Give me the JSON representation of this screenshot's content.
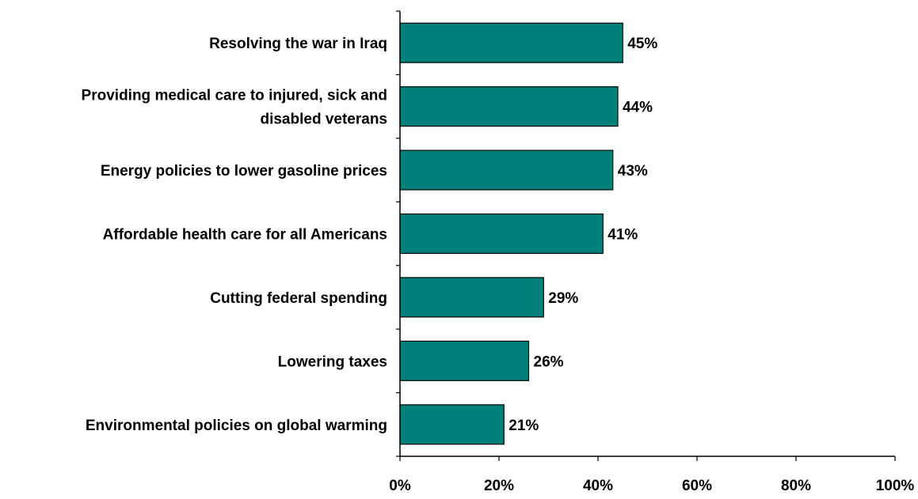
{
  "chart_data": {
    "type": "bar",
    "orientation": "horizontal",
    "categories": [
      [
        "Resolving the war in Iraq"
      ],
      [
        "Providing medical care to injured, sick and",
        "disabled veterans"
      ],
      [
        "Energy policies to lower gasoline prices"
      ],
      [
        "Affordable health care for all Americans"
      ],
      [
        "Cutting federal spending"
      ],
      [
        "Lowering taxes"
      ],
      [
        "Environmental policies on global warming"
      ]
    ],
    "values": [
      45,
      44,
      43,
      41,
      29,
      26,
      21
    ],
    "value_labels": [
      "45%",
      "44%",
      "43%",
      "41%",
      "29%",
      "26%",
      "21%"
    ],
    "x_ticks": [
      0,
      20,
      40,
      60,
      80,
      100
    ],
    "x_tick_labels": [
      "0%",
      "20%",
      "40%",
      "60%",
      "80%",
      "100%"
    ],
    "xlim": [
      0,
      100
    ],
    "title": "",
    "xlabel": "",
    "ylabel": "",
    "grid": false,
    "bar_color": "#00807A",
    "bar_border_color": "#000000"
  }
}
